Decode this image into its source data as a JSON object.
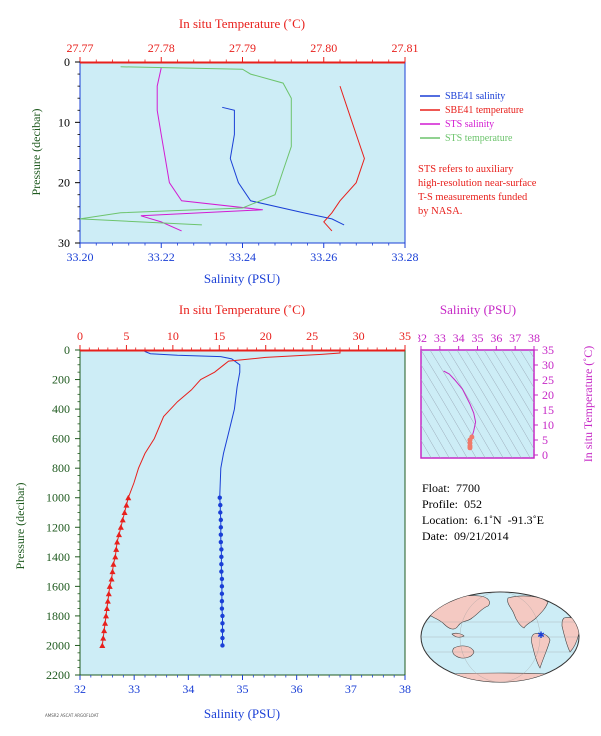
{
  "colors": {
    "panel_bg": "#cdedf6",
    "salinity_blue": "#1a3fd6",
    "temperature_red": "#e8201c",
    "sts_salinity": "#d21cd2",
    "sts_temperature": "#6dc46d",
    "pressure_green": "#1f5a1f",
    "inset_magenta": "#c628c6"
  },
  "top_panel": {
    "top_axis_title": "In situ Temperature (˚C)",
    "bottom_axis_title": "Salinity (PSU)",
    "left_axis_title": "Pressure (decibar)",
    "top_ticks": [
      "27.77",
      "27.78",
      "27.79",
      "27.80",
      "27.81"
    ],
    "bottom_ticks": [
      "33.20",
      "33.22",
      "33.24",
      "33.26",
      "33.28"
    ],
    "left_ticks": [
      "0",
      "10",
      "20",
      "30"
    ],
    "legend": [
      {
        "label": "SBE41 salinity",
        "color": "#1a3fd6"
      },
      {
        "label": "SBE41 temperature",
        "color": "#e8201c"
      },
      {
        "label": "STS salinity",
        "color": "#d21cd2"
      },
      {
        "label": "STS temperature",
        "color": "#6dc46d"
      }
    ],
    "note_lines": [
      "STS refers to auxiliary",
      "high-resolution near-surface",
      "T-S measurements funded",
      "by NASA."
    ]
  },
  "main_panel": {
    "top_axis_title": "In situ Temperature (˚C)",
    "bottom_axis_title": "Salinity (PSU)",
    "left_axis_title": "Pressure (decibar)",
    "top_ticks": [
      "0",
      "5",
      "10",
      "15",
      "20",
      "25",
      "30",
      "35"
    ],
    "bottom_ticks": [
      "32",
      "33",
      "34",
      "35",
      "36",
      "37",
      "38"
    ],
    "left_ticks": [
      "0",
      "200",
      "400",
      "600",
      "800",
      "1000",
      "1200",
      "1400",
      "1600",
      "1800",
      "2000",
      "2200"
    ]
  },
  "inset": {
    "top_axis_title": "Salinity (PSU)",
    "right_axis_title": "In situ Temperature (˚C)",
    "top_ticks": [
      "32",
      "33",
      "34",
      "35",
      "36",
      "37",
      "38"
    ],
    "right_ticks": [
      "35",
      "30",
      "25",
      "20",
      "15",
      "10",
      "5",
      "0"
    ]
  },
  "info": {
    "float": "Float:  7700",
    "profile": "Profile:  052",
    "location": "Location:  6.1˚N  -91.3˚E",
    "date": "Date:  09/21/2014"
  },
  "footer_text": "AMSR2 ASCAT ARGOFLOAT",
  "chart_data": [
    {
      "type": "line",
      "title": "",
      "x_axis_bottom": {
        "label": "Salinity (PSU)",
        "range": [
          33.2,
          33.28
        ]
      },
      "x_axis_top": {
        "label": "In situ Temperature (˚C)",
        "range": [
          27.77,
          27.81
        ]
      },
      "y_axis": {
        "label": "Pressure (decibar)",
        "range": [
          0,
          30
        ],
        "inverted": true
      },
      "series": [
        {
          "name": "SBE41 salinity",
          "axis": "salinity",
          "points": [
            [
              33.235,
              7.5
            ],
            [
              33.238,
              8
            ],
            [
              33.238,
              12
            ],
            [
              33.237,
              16
            ],
            [
              33.239,
              20
            ],
            [
              33.242,
              23
            ],
            [
              33.255,
              25
            ],
            [
              33.262,
              26
            ],
            [
              33.265,
              27
            ]
          ]
        },
        {
          "name": "SBE41 temperature",
          "axis": "temperature",
          "points": [
            [
              27.802,
              4
            ],
            [
              27.803,
              8
            ],
            [
              27.804,
              12
            ],
            [
              27.805,
              16
            ],
            [
              27.804,
              20
            ],
            [
              27.802,
              23
            ],
            [
              27.801,
              25
            ],
            [
              27.8,
              26.5
            ],
            [
              27.801,
              28
            ]
          ]
        },
        {
          "name": "STS salinity",
          "axis": "salinity",
          "points": [
            [
              33.22,
              1
            ],
            [
              33.219,
              4
            ],
            [
              33.219,
              8
            ],
            [
              33.22,
              12
            ],
            [
              33.221,
              16
            ],
            [
              33.222,
              20
            ],
            [
              33.225,
              23
            ],
            [
              33.245,
              24.5
            ],
            [
              33.215,
              25.5
            ],
            [
              33.22,
              26.5
            ],
            [
              33.225,
              28
            ]
          ]
        },
        {
          "name": "STS temperature",
          "axis": "temperature",
          "points": [
            [
              27.775,
              0.8
            ],
            [
              27.79,
              1.2
            ],
            [
              27.791,
              2
            ],
            [
              27.795,
              3.5
            ],
            [
              27.796,
              6
            ],
            [
              27.796,
              10
            ],
            [
              27.796,
              14
            ],
            [
              27.795,
              18
            ],
            [
              27.794,
              22
            ],
            [
              27.79,
              24.2
            ],
            [
              27.775,
              25
            ],
            [
              27.77,
              26
            ],
            [
              27.785,
              27
            ]
          ]
        }
      ]
    },
    {
      "type": "line",
      "title": "",
      "x_axis_bottom": {
        "label": "Salinity (PSU)",
        "range": [
          32,
          38
        ]
      },
      "x_axis_top": {
        "label": "In situ Temperature (˚C)",
        "range": [
          0,
          35
        ]
      },
      "y_axis": {
        "label": "Pressure (decibar)",
        "range": [
          0,
          2200
        ],
        "inverted": true
      },
      "series": [
        {
          "name": "Salinity",
          "axis": "salinity",
          "points": [
            [
              33.2,
              0
            ],
            [
              33.2,
              10
            ],
            [
              33.3,
              25
            ],
            [
              33.8,
              35
            ],
            [
              34.6,
              45
            ],
            [
              34.8,
              60
            ],
            [
              34.95,
              100
            ],
            [
              34.95,
              150
            ],
            [
              34.9,
              250
            ],
            [
              34.85,
              400
            ],
            [
              34.75,
              550
            ],
            [
              34.65,
              700
            ],
            [
              34.6,
              800
            ],
            [
              34.58,
              1000
            ]
          ],
          "markers": [
            [
              34.58,
              1000
            ],
            [
              34.59,
              1050
            ],
            [
              34.59,
              1100
            ],
            [
              34.6,
              1150
            ],
            [
              34.6,
              1200
            ],
            [
              34.6,
              1250
            ],
            [
              34.6,
              1300
            ],
            [
              34.61,
              1350
            ],
            [
              34.61,
              1400
            ],
            [
              34.61,
              1450
            ],
            [
              34.61,
              1500
            ],
            [
              34.62,
              1550
            ],
            [
              34.62,
              1600
            ],
            [
              34.62,
              1650
            ],
            [
              34.62,
              1700
            ],
            [
              34.62,
              1750
            ],
            [
              34.63,
              1800
            ],
            [
              34.63,
              1850
            ],
            [
              34.63,
              1900
            ],
            [
              34.63,
              1950
            ],
            [
              34.63,
              2000
            ]
          ]
        },
        {
          "name": "Temperature",
          "axis": "temperature",
          "points": [
            [
              28.0,
              0
            ],
            [
              28.0,
              20
            ],
            [
              26.0,
              30
            ],
            [
              20.0,
              50
            ],
            [
              16.0,
              75
            ],
            [
              15.5,
              100
            ],
            [
              14.5,
              150
            ],
            [
              13.0,
              200
            ],
            [
              12.0,
              270
            ],
            [
              10.5,
              350
            ],
            [
              9.0,
              450
            ],
            [
              8.0,
              600
            ],
            [
              7.0,
              700
            ],
            [
              6.3,
              800
            ],
            [
              5.8,
              900
            ],
            [
              5.2,
              1000
            ]
          ],
          "markers": [
            [
              5.2,
              1000
            ],
            [
              5.0,
              1050
            ],
            [
              4.8,
              1100
            ],
            [
              4.6,
              1150
            ],
            [
              4.4,
              1200
            ],
            [
              4.2,
              1250
            ],
            [
              4.0,
              1300
            ],
            [
              3.9,
              1350
            ],
            [
              3.8,
              1400
            ],
            [
              3.6,
              1450
            ],
            [
              3.5,
              1500
            ],
            [
              3.4,
              1550
            ],
            [
              3.2,
              1600
            ],
            [
              3.1,
              1650
            ],
            [
              3.0,
              1700
            ],
            [
              2.9,
              1750
            ],
            [
              2.8,
              1800
            ],
            [
              2.7,
              1850
            ],
            [
              2.6,
              1900
            ],
            [
              2.5,
              1950
            ],
            [
              2.4,
              2000
            ]
          ]
        }
      ]
    },
    {
      "type": "scatter",
      "title": "",
      "x_axis": {
        "label": "Salinity (PSU)",
        "range": [
          32,
          38
        ]
      },
      "y_axis": {
        "label": "In situ Temperature (˚C)",
        "range": [
          -1,
          35
        ]
      },
      "series": [
        {
          "name": "T-S",
          "points": [
            [
              33.2,
              28
            ],
            [
              33.5,
              27
            ],
            [
              33.8,
              25
            ],
            [
              34.2,
              22
            ],
            [
              34.6,
              17
            ],
            [
              34.8,
              14
            ],
            [
              34.9,
              11
            ],
            [
              34.8,
              8
            ],
            [
              34.7,
              6
            ],
            [
              34.6,
              5
            ],
            [
              34.6,
              4
            ],
            [
              34.6,
              3
            ],
            [
              34.6,
              2.4
            ]
          ]
        }
      ]
    }
  ]
}
